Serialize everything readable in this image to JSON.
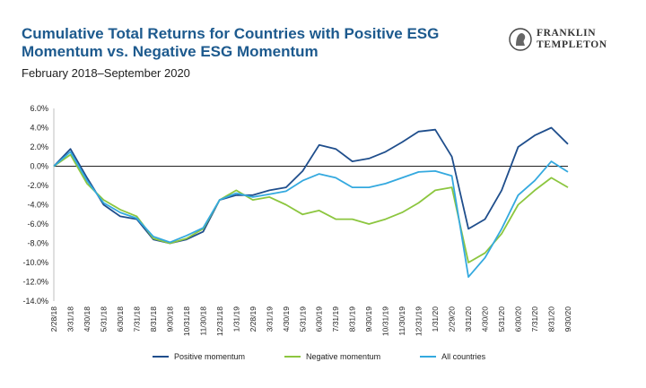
{
  "header": {
    "title": "Cumulative Total Returns for Countries with Positive ESG Momentum vs. Negative ESG Momentum",
    "subtitle": "February 2018–September 2020",
    "logo_line1": "FRANKLIN",
    "logo_line2": "TEMPLETON"
  },
  "colors": {
    "title": "#1d5a8e",
    "positive": "#1f4e8c",
    "negative": "#8cc63f",
    "all": "#34a9df",
    "axis": "#222222",
    "grid": "#d9d9d9"
  },
  "chart_data": {
    "type": "line",
    "title": "Cumulative Total Returns for Countries with Positive ESG Momentum vs. Negative ESG Momentum",
    "subtitle": "February 2018–September 2020",
    "xlabel": "",
    "ylabel": "",
    "ylim": [
      -14,
      6
    ],
    "yticks": [
      6,
      4,
      2,
      0,
      -2,
      -4,
      -6,
      -8,
      -10,
      -12,
      -14
    ],
    "ytick_labels": [
      "6.0%",
      "4.0%",
      "2.0%",
      "0.0%",
      "-2.0%",
      "-4.0%",
      "-6.0%",
      "-8.0%",
      "-10.0%",
      "-12.0%",
      "-14.0%"
    ],
    "x": [
      "2/28/18",
      "3/31/18",
      "4/30/18",
      "5/31/18",
      "6/30/18",
      "7/31/18",
      "8/31/18",
      "9/30/18",
      "10/31/18",
      "11/30/18",
      "12/31/18",
      "1/31/19",
      "2/28/19",
      "3/31/19",
      "4/30/19",
      "5/31/19",
      "6/30/19",
      "7/31/19",
      "8/31/19",
      "9/30/19",
      "10/31/19",
      "11/30/19",
      "12/31/19",
      "1/31/20",
      "2/29/20",
      "3/31/20",
      "4/30/20",
      "5/31/20",
      "6/30/20",
      "7/31/20",
      "8/31/20",
      "9/30/20"
    ],
    "series": [
      {
        "name": "Positive momentum",
        "color": "#1f4e8c",
        "values": [
          0.0,
          1.8,
          -1.2,
          -4.0,
          -5.2,
          -5.5,
          -7.6,
          -8.0,
          -7.6,
          -6.8,
          -3.5,
          -3.0,
          -3.0,
          -2.5,
          -2.2,
          -0.5,
          2.2,
          1.8,
          0.5,
          0.8,
          1.5,
          2.5,
          3.6,
          3.8,
          1.0,
          -6.5,
          -5.5,
          -2.5,
          2.0,
          3.2,
          4.0,
          2.3
        ]
      },
      {
        "name": "Negative momentum",
        "color": "#8cc63f",
        "values": [
          0.0,
          1.2,
          -1.8,
          -3.5,
          -4.5,
          -5.2,
          -7.5,
          -8.0,
          -7.5,
          -6.5,
          -3.5,
          -2.5,
          -3.5,
          -3.2,
          -4.0,
          -5.0,
          -4.6,
          -5.5,
          -5.5,
          -6.0,
          -5.5,
          -4.8,
          -3.8,
          -2.5,
          -2.2,
          -10.0,
          -9.0,
          -7.0,
          -4.0,
          -2.5,
          -1.2,
          -2.2
        ]
      },
      {
        "name": "All countries",
        "color": "#34a9df",
        "values": [
          0.0,
          1.5,
          -1.5,
          -3.8,
          -4.8,
          -5.4,
          -7.3,
          -7.9,
          -7.2,
          -6.4,
          -3.5,
          -2.8,
          -3.2,
          -2.9,
          -2.6,
          -1.5,
          -0.8,
          -1.2,
          -2.2,
          -2.2,
          -1.8,
          -1.2,
          -0.6,
          -0.5,
          -1.0,
          -11.5,
          -9.5,
          -6.5,
          -3.0,
          -1.5,
          0.5,
          -0.6
        ]
      }
    ],
    "legend": "bottom",
    "grid": false,
    "zero_line": true
  }
}
